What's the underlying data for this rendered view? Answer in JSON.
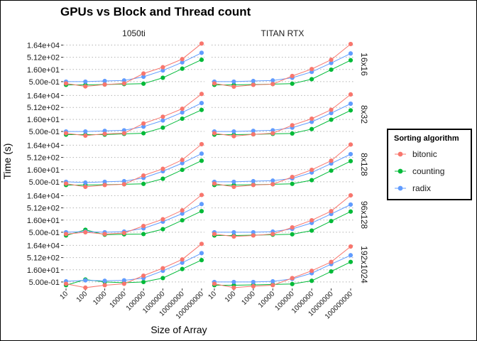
{
  "chart_data": {
    "type": "line",
    "title": "GPUs vs Block and Thread count",
    "xlabel": "Size of Array",
    "ylabel": "Time (s)",
    "x_scale": "log10",
    "y_scale": "log2",
    "x": [
      10,
      100,
      1000,
      10000,
      100000,
      1000000,
      10000000,
      100000000
    ],
    "x_tick_labels": [
      "10",
      "100",
      "1000",
      "10000",
      "100000",
      "1000000",
      "10000000",
      "100000000"
    ],
    "y_ticks": [
      0.5,
      16,
      512,
      16384
    ],
    "y_tick_labels": [
      "5.00e-01",
      "1.60e+01",
      "5.12e+02",
      "1.64e+04"
    ],
    "ylim": [
      0.08,
      60000
    ],
    "grid": true,
    "legend_position": "right",
    "legend_title": "Sorting algorithm",
    "series_names": [
      "bitonic",
      "counting",
      "radix"
    ],
    "colors": {
      "bitonic": "#F8766D",
      "counting": "#00BA38",
      "radix": "#619CFF"
    },
    "columns": [
      "1050ti",
      "TITAN RTX"
    ],
    "rows": [
      "16x16",
      "8x32",
      "8x128",
      "96x128",
      "192x1024"
    ],
    "panels": [
      {
        "row": "16x16",
        "column": "1050ti",
        "series": [
          {
            "name": "bitonic",
            "values": [
              0.3,
              0.13,
              0.22,
              0.3,
              5,
              30,
              300,
              25000
            ]
          },
          {
            "name": "counting",
            "values": [
              0.2,
              0.2,
              0.22,
              0.25,
              0.28,
              1.5,
              20,
              250
            ]
          },
          {
            "name": "radix",
            "values": [
              0.5,
              0.5,
              0.6,
              0.7,
              2,
              12,
              120,
              1800
            ]
          }
        ]
      },
      {
        "row": "16x16",
        "column": "TITAN RTX",
        "series": [
          {
            "name": "bitonic",
            "values": [
              0.3,
              0.12,
              0.2,
              0.25,
              2.5,
              18,
              250,
              22000
            ]
          },
          {
            "name": "counting",
            "values": [
              0.2,
              0.2,
              0.22,
              0.25,
              0.28,
              1,
              15,
              220
            ]
          },
          {
            "name": "radix",
            "values": [
              0.5,
              0.5,
              0.6,
              0.7,
              1.5,
              8,
              100,
              1500
            ]
          }
        ]
      },
      {
        "row": "8x32",
        "column": "1050ti",
        "series": [
          {
            "name": "bitonic",
            "values": [
              0.3,
              0.15,
              0.25,
              0.3,
              5,
              35,
              350,
              25000
            ]
          },
          {
            "name": "counting",
            "values": [
              0.2,
              0.2,
              0.2,
              0.25,
              0.3,
              1.5,
              20,
              250
            ]
          },
          {
            "name": "radix",
            "values": [
              0.5,
              0.5,
              0.6,
              0.7,
              2,
              12,
              120,
              1800
            ]
          }
        ]
      },
      {
        "row": "8x32",
        "column": "TITAN RTX",
        "series": [
          {
            "name": "bitonic",
            "values": [
              0.3,
              0.13,
              0.22,
              0.3,
              3,
              20,
              260,
              22000
            ]
          },
          {
            "name": "counting",
            "values": [
              0.2,
              0.2,
              0.22,
              0.25,
              0.28,
              1,
              15,
              220
            ]
          },
          {
            "name": "radix",
            "values": [
              0.5,
              0.5,
              0.6,
              0.7,
              1.5,
              8,
              100,
              1500
            ]
          }
        ]
      },
      {
        "row": "8x128",
        "column": "1050ti",
        "series": [
          {
            "name": "bitonic",
            "values": [
              0.3,
              0.12,
              0.2,
              0.25,
              3,
              20,
              250,
              22000
            ]
          },
          {
            "name": "counting",
            "values": [
              0.2,
              0.2,
              0.22,
              0.25,
              0.28,
              1.2,
              15,
              200
            ]
          },
          {
            "name": "radix",
            "values": [
              0.5,
              0.4,
              0.5,
              0.6,
              1.5,
              10,
              100,
              1500
            ]
          }
        ]
      },
      {
        "row": "8x128",
        "column": "TITAN RTX",
        "series": [
          {
            "name": "bitonic",
            "values": [
              0.3,
              0.12,
              0.2,
              0.25,
              2,
              15,
              200,
              20000
            ]
          },
          {
            "name": "counting",
            "values": [
              0.2,
              0.2,
              0.22,
              0.25,
              0.28,
              0.8,
              12,
              180
            ]
          },
          {
            "name": "radix",
            "values": [
              0.5,
              0.5,
              0.6,
              0.7,
              1.3,
              7,
              90,
              1300
            ]
          }
        ]
      },
      {
        "row": "96x128",
        "column": "1050ti",
        "series": [
          {
            "name": "bitonic",
            "values": [
              0.3,
              0.5,
              0.3,
              0.4,
              3,
              20,
              250,
              20000
            ]
          },
          {
            "name": "counting",
            "values": [
              0.2,
              1.0,
              0.25,
              0.28,
              0.3,
              1.2,
              15,
              200
            ]
          },
          {
            "name": "radix",
            "values": [
              0.5,
              0.6,
              0.5,
              0.6,
              1.5,
              10,
              100,
              1500
            ]
          }
        ]
      },
      {
        "row": "96x128",
        "column": "TITAN RTX",
        "series": [
          {
            "name": "bitonic",
            "values": [
              0.3,
              0.15,
              0.2,
              0.3,
              2,
              15,
              200,
              18000
            ]
          },
          {
            "name": "counting",
            "values": [
              0.2,
              0.2,
              0.22,
              0.25,
              0.28,
              0.8,
              12,
              180
            ]
          },
          {
            "name": "radix",
            "values": [
              0.5,
              0.5,
              0.5,
              0.6,
              1.3,
              7,
              90,
              1300
            ]
          }
        ]
      },
      {
        "row": "192x1024",
        "column": "1050ti",
        "series": [
          {
            "name": "bitonic",
            "values": [
              0.3,
              0.1,
              0.2,
              0.3,
              3,
              25,
              300,
              25000
            ]
          },
          {
            "name": "counting",
            "values": [
              0.2,
              1.0,
              0.5,
              0.4,
              0.5,
              1.5,
              20,
              250
            ]
          },
          {
            "name": "radix",
            "values": [
              0.6,
              0.8,
              0.7,
              0.8,
              1.5,
              12,
              120,
              1800
            ]
          }
        ]
      },
      {
        "row": "192x1024",
        "column": "TITAN RTX",
        "series": [
          {
            "name": "bitonic",
            "values": [
              0.3,
              0.1,
              0.15,
              0.2,
              1.5,
              12,
              150,
              12000
            ]
          },
          {
            "name": "counting",
            "values": [
              0.2,
              0.2,
              0.22,
              0.25,
              0.28,
              0.7,
              10,
              150
            ]
          },
          {
            "name": "radix",
            "values": [
              0.5,
              0.5,
              0.5,
              0.6,
              1.2,
              6,
              80,
              1000
            ]
          }
        ]
      }
    ]
  }
}
